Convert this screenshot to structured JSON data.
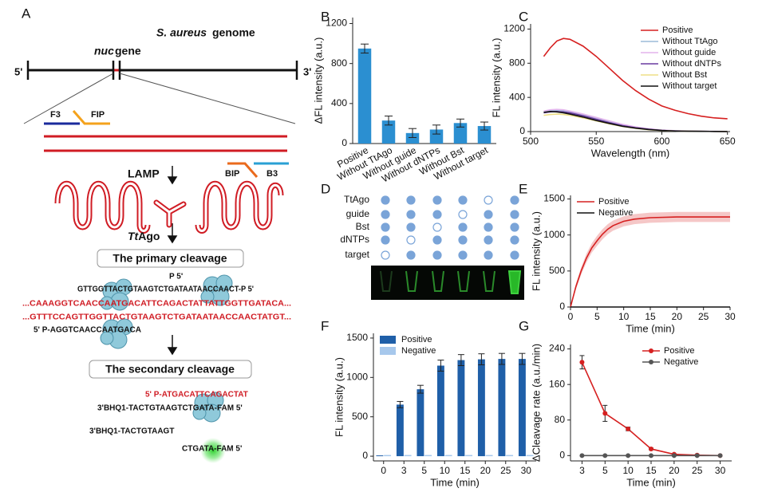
{
  "panel_a": {
    "label": "A",
    "species": "S. aureus",
    "genome_word": "genome",
    "gene_name": "nuc",
    "gene_word": "gene",
    "end5": "5'",
    "end3": "3'",
    "primers": [
      "F3",
      "FIP",
      "BIP",
      "B3"
    ],
    "lamp": "LAMP",
    "ttago_prefix": "Tt",
    "ttago_suffix": "Ago",
    "primary": "The primary cleavage",
    "secondary": "The secondary cleavage",
    "seq": [
      "P 5'",
      "GTTGGTTACTGTAAGTCTGATAATAACCAACT-P 5'",
      "...CAAAGGTCAACCAATGACATTCAGACTATTATTGGTTGATACA...",
      "...GTTTCCAGTTGGTTACTGTAAGTCTGATAATAACCAACTATGT...",
      "5' P-AGGTCAACCAATGACA",
      "5' P-ATGACATTCAGACTAT",
      "3'BHQ1-TACTGTAAGTCTGATA-FAM 5'",
      "3'BHQ1-TACTGTAAGT",
      "CTGATA-FAM 5'"
    ]
  },
  "panel_d": {
    "label": "D",
    "rows": [
      "TtAgo",
      "guide",
      "Bst",
      "dNTPs",
      "target"
    ],
    "matrix": [
      [
        1,
        1,
        1,
        1,
        0,
        1
      ],
      [
        1,
        1,
        1,
        0,
        1,
        1
      ],
      [
        1,
        1,
        0,
        1,
        1,
        1
      ],
      [
        1,
        0,
        1,
        1,
        1,
        1
      ],
      [
        0,
        1,
        1,
        1,
        1,
        1
      ]
    ],
    "color": "#7aa4d8"
  },
  "chart_data": [
    {
      "label": "B",
      "type": "bar",
      "ylabel": "ΔFL intensity (a.u.)",
      "categories": [
        "Positive",
        "Without TtAgo",
        "Without guide",
        "Without dNTPs",
        "Without Bst",
        "Without target"
      ],
      "values": [
        950,
        230,
        105,
        140,
        205,
        175
      ],
      "errors": [
        45,
        45,
        45,
        45,
        40,
        40
      ],
      "color": "#2b8fd1",
      "ylim": [
        0,
        1260
      ],
      "yticks": [
        0,
        400,
        800,
        1200
      ]
    },
    {
      "label": "C",
      "type": "line",
      "xlabel": "Wavelength (nm)",
      "ylabel": "FL intensity (a.u.)",
      "x": [
        510,
        515,
        520,
        525,
        530,
        540,
        550,
        560,
        570,
        580,
        590,
        600,
        610,
        620,
        630,
        640,
        650
      ],
      "series": [
        {
          "name": "Positive",
          "color": "#d62020",
          "values": [
            880,
            980,
            1060,
            1090,
            1080,
            1000,
            880,
            740,
            600,
            480,
            380,
            300,
            250,
            210,
            180,
            160,
            150
          ]
        },
        {
          "name": "Without TtAgo",
          "color": "#9bbbd8",
          "values": [
            230,
            245,
            250,
            245,
            235,
            200,
            160,
            120,
            80,
            50,
            30,
            15,
            8,
            5,
            3,
            2,
            1
          ]
        },
        {
          "name": "Without guide",
          "color": "#e3b4ec",
          "values": [
            240,
            255,
            260,
            255,
            240,
            205,
            165,
            125,
            85,
            55,
            32,
            18,
            10,
            6,
            4,
            3,
            2
          ]
        },
        {
          "name": "Without dNTPs",
          "color": "#6a3aa0",
          "values": [
            220,
            230,
            235,
            230,
            220,
            185,
            145,
            105,
            70,
            45,
            28,
            14,
            8,
            5,
            3,
            2,
            1
          ]
        },
        {
          "name": "Without Bst",
          "color": "#efdf86",
          "values": [
            190,
            200,
            205,
            200,
            190,
            160,
            125,
            90,
            60,
            38,
            22,
            12,
            7,
            4,
            3,
            2,
            1
          ]
        },
        {
          "name": "Without target",
          "color": "#111111",
          "values": [
            225,
            235,
            230,
            220,
            205,
            170,
            130,
            95,
            62,
            40,
            24,
            13,
            7,
            4,
            3,
            2,
            1
          ]
        }
      ],
      "xlim": [
        500,
        652
      ],
      "xticks": [
        500,
        550,
        600,
        650
      ],
      "ylim": [
        0,
        1260
      ],
      "yticks": [
        0,
        400,
        800,
        1200
      ],
      "legend": "upper right"
    },
    {
      "label": "E",
      "type": "line",
      "xlabel": "Time (min)",
      "ylabel": "FL intensity (a.u.)",
      "x": [
        0,
        1,
        2,
        3,
        4,
        5,
        6,
        7,
        8,
        10,
        12,
        15,
        20,
        25,
        30
      ],
      "series": [
        {
          "name": "Positive",
          "color": "#d62020",
          "values": [
            0,
            280,
            500,
            680,
            820,
            920,
            1010,
            1080,
            1130,
            1190,
            1220,
            1240,
            1250,
            1250,
            1250
          ],
          "error": [
            10,
            40,
            50,
            60,
            65,
            70,
            70,
            70,
            70,
            70,
            70,
            70,
            70,
            70,
            70
          ]
        },
        {
          "name": "Negative",
          "color": "#111111",
          "values": [
            0,
            0,
            0,
            0,
            0,
            0,
            0,
            0,
            0,
            0,
            0,
            0,
            0,
            0,
            0
          ]
        }
      ],
      "xlim": [
        0,
        30
      ],
      "xticks": [
        0,
        5,
        10,
        15,
        20,
        25,
        30
      ],
      "ylim": [
        0,
        1550
      ],
      "yticks": [
        0,
        500,
        1000,
        1500
      ],
      "legend": "upper left",
      "error_style": "band"
    },
    {
      "label": "F",
      "type": "bar",
      "xlabel": "Time (min)",
      "ylabel": "FL intensity (a.u.)",
      "categories": [
        "0",
        "3",
        "5",
        "10",
        "15",
        "20",
        "25",
        "30"
      ],
      "series": [
        {
          "name": "Positive",
          "color": "#1f5fa8",
          "values": [
            10,
            655,
            850,
            1150,
            1220,
            1230,
            1235,
            1235
          ],
          "errors": [
            0,
            40,
            50,
            70,
            70,
            70,
            70,
            70
          ]
        },
        {
          "name": "Negative",
          "color": "#a7c8ec",
          "values": [
            15,
            15,
            15,
            15,
            15,
            15,
            15,
            15
          ],
          "errors": [
            0,
            0,
            0,
            0,
            0,
            0,
            0,
            0
          ]
        }
      ],
      "ylim": [
        -60,
        1560
      ],
      "yticks": [
        0,
        500,
        1000,
        1500
      ],
      "legend": "upper left"
    },
    {
      "label": "G",
      "type": "line",
      "xlabel": "Time (min)",
      "ylabel": "ΔCleavage rate (a.u./min)",
      "categories": [
        "3",
        "5",
        "10",
        "15",
        "20",
        "25",
        "30"
      ],
      "series": [
        {
          "name": "Positive",
          "color": "#d62020",
          "values": [
            210,
            95,
            60,
            15,
            3,
            1,
            0
          ],
          "error": [
            15,
            18,
            4,
            2,
            1,
            1,
            0
          ]
        },
        {
          "name": "Negative",
          "color": "#555555",
          "values": [
            0,
            0,
            0,
            0,
            0,
            0,
            0
          ],
          "error": [
            0,
            0,
            0,
            0,
            0,
            0,
            0
          ]
        }
      ],
      "ylim": [
        -12,
        250
      ],
      "yticks": [
        0,
        80,
        160,
        240
      ],
      "legend": "upper right",
      "error_style": "bars",
      "markers": true
    }
  ]
}
